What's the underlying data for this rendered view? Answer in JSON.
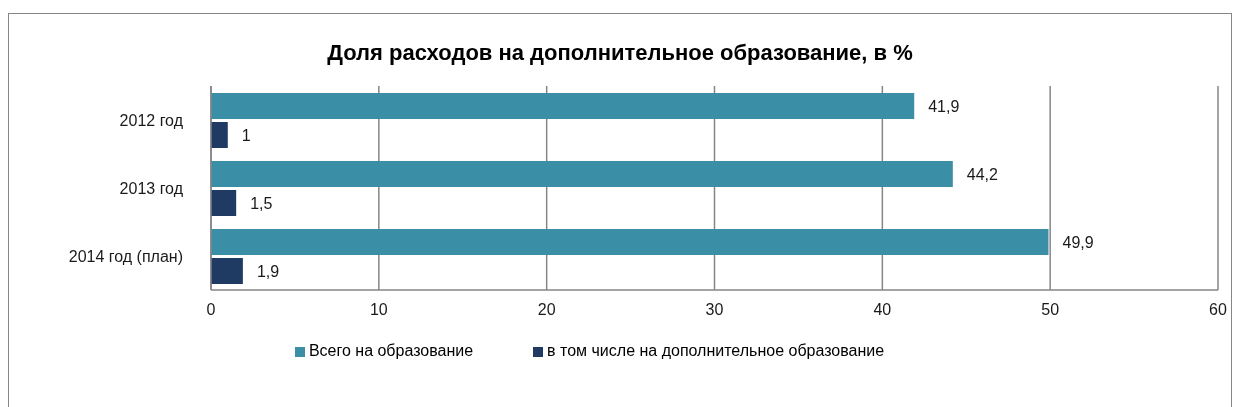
{
  "chart_data": {
    "type": "bar",
    "orientation": "horizontal",
    "title": "Доля расходов на дополнительное образование, в %",
    "categories": [
      "2012 год",
      "2013 год",
      "2014 год (план)"
    ],
    "series": [
      {
        "name": "Всего на образование",
        "color": "#3a8ea5",
        "values": [
          41.9,
          44.2,
          49.9
        ],
        "value_labels": [
          "41,9",
          "44,2",
          "49,9"
        ]
      },
      {
        "name": "в том числе на дополнительное образование",
        "color": "#1f3b64",
        "values": [
          1,
          1.5,
          1.9
        ],
        "value_labels": [
          "1",
          "1,5",
          "1,9"
        ]
      }
    ],
    "xlim": [
      0,
      60
    ],
    "xticks": [
      0,
      10,
      20,
      30,
      40,
      50,
      60
    ],
    "grid": "x",
    "legend": "bottom"
  }
}
